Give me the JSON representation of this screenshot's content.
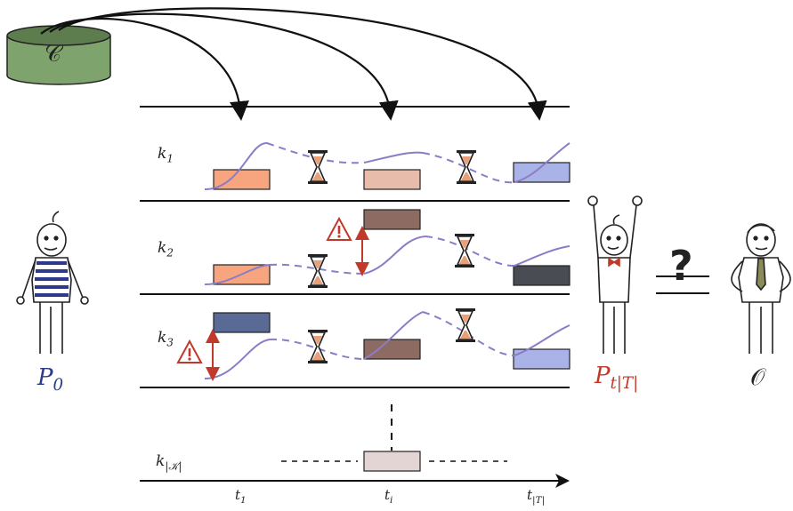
{
  "cache": {
    "label": "𝒞",
    "color": "#7fa36c"
  },
  "rows": [
    {
      "label": "k",
      "sub": "1"
    },
    {
      "label": "k",
      "sub": "2"
    },
    {
      "label": "k",
      "sub": "3"
    },
    {
      "label": "k",
      "sub": "|𝒦|"
    }
  ],
  "times": [
    {
      "label": "t",
      "sub": "1"
    },
    {
      "label": "t",
      "sub": "i"
    },
    {
      "label": "t",
      "sub": "|T|"
    }
  ],
  "agents": {
    "initial": {
      "label": "P",
      "sub": "0",
      "color": "#2e3a87"
    },
    "final": {
      "label": "P",
      "sub": "t|T|",
      "color": "#c0392b"
    },
    "oracle": {
      "label": "𝒪",
      "color": "#222222"
    }
  },
  "question_mark": "?",
  "colors": {
    "orange": "#f7a57e",
    "peach": "#e8bcab",
    "lavender": "#aab3e8",
    "brown": "#8d6b62",
    "dark_gray": "#494c52",
    "navy": "#5a6a96",
    "pale": "#e3d5d3",
    "curve": "#8b7cc6",
    "warning": "#c0392b"
  }
}
